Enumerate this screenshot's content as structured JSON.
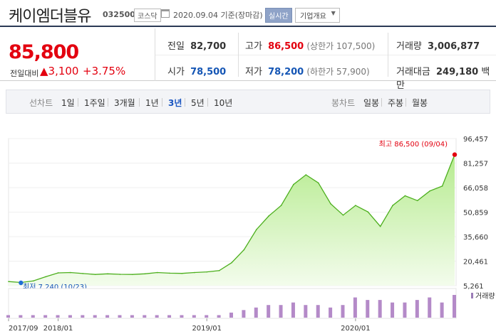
{
  "header": {
    "stock_name": "케이엠더블유",
    "stock_code": "032500",
    "market": "코스닥",
    "date_text": "2020.09.04 기준(장마감)",
    "realtime_label": "실시간",
    "company_info_label": "기업개요"
  },
  "quote": {
    "price": "85,800",
    "diff_label": "전일대비",
    "diff_value": "▲3,100",
    "diff_percent": "+3.75%",
    "prev_label": "전일",
    "prev_value": "82,700",
    "high_label": "고가",
    "high_value": "86,500",
    "upper_limit": "(상한가 107,500)",
    "volume_label": "거래량",
    "volume_value": "3,006,877",
    "open_label": "시가",
    "open_value": "78,500",
    "low_label": "저가",
    "low_value": "78,200",
    "lower_limit": "(하한가 57,900)",
    "amount_label": "거래대금",
    "amount_value": "249,180",
    "amount_unit": "백만"
  },
  "tabs": {
    "line_chart_label": "선차트",
    "periods": [
      "1일",
      "1주일",
      "3개월",
      "1년",
      "3년",
      "5년",
      "10년"
    ],
    "active_period": "3년",
    "candle_label": "봉차트",
    "candle_periods": [
      "일봉",
      "주봉",
      "월봉"
    ]
  },
  "colors": {
    "up": "#e3000f",
    "down": "#1556b5",
    "line": "#4caf1d",
    "area_top": "#bfeea0",
    "volume": "#b48ac8"
  },
  "chart_data": {
    "type": "area",
    "title": "",
    "x_ticks": [
      "2017/09",
      "2018/01",
      "2019/01",
      "2020/01"
    ],
    "y_ticks": [
      5261,
      20461,
      35660,
      50859,
      66058,
      81257,
      96457
    ],
    "y_tick_labels": [
      "5,261",
      "20,461",
      "35,660",
      "50,859",
      "66,058",
      "81,257",
      "96,457"
    ],
    "ylim": [
      5261,
      96457
    ],
    "high_annotation": "최고 86,500 (09/04)",
    "low_annotation": "최저 7,240 (10/23)",
    "volume_legend": "거래량",
    "price_series": [
      {
        "date": "2017-09",
        "value": 7800
      },
      {
        "date": "2017-10",
        "value": 7240
      },
      {
        "date": "2017-11",
        "value": 8200
      },
      {
        "date": "2017-12",
        "value": 10800
      },
      {
        "date": "2018-01",
        "value": 13200
      },
      {
        "date": "2018-02",
        "value": 13400
      },
      {
        "date": "2018-03",
        "value": 12800
      },
      {
        "date": "2018-04",
        "value": 12200
      },
      {
        "date": "2018-05",
        "value": 12600
      },
      {
        "date": "2018-06",
        "value": 12300
      },
      {
        "date": "2018-07",
        "value": 12200
      },
      {
        "date": "2018-08",
        "value": 12600
      },
      {
        "date": "2018-09",
        "value": 13400
      },
      {
        "date": "2018-10",
        "value": 13000
      },
      {
        "date": "2018-11",
        "value": 12900
      },
      {
        "date": "2018-12",
        "value": 13400
      },
      {
        "date": "2019-01",
        "value": 13800
      },
      {
        "date": "2019-02",
        "value": 14600
      },
      {
        "date": "2019-03",
        "value": 19500
      },
      {
        "date": "2019-04",
        "value": 27500
      },
      {
        "date": "2019-05",
        "value": 40000
      },
      {
        "date": "2019-06",
        "value": 48500
      },
      {
        "date": "2019-07",
        "value": 55000
      },
      {
        "date": "2019-08",
        "value": 68000
      },
      {
        "date": "2019-09",
        "value": 74000
      },
      {
        "date": "2019-10",
        "value": 69000
      },
      {
        "date": "2019-11",
        "value": 56000
      },
      {
        "date": "2019-12",
        "value": 49000
      },
      {
        "date": "2020-01",
        "value": 55000
      },
      {
        "date": "2020-02",
        "value": 51000
      },
      {
        "date": "2020-03",
        "value": 42000
      },
      {
        "date": "2020-04",
        "value": 55000
      },
      {
        "date": "2020-05",
        "value": 61000
      },
      {
        "date": "2020-06",
        "value": 58000
      },
      {
        "date": "2020-07",
        "value": 64000
      },
      {
        "date": "2020-08",
        "value": 67000
      },
      {
        "date": "2020-09",
        "value": 86500
      }
    ],
    "volume_series": [
      1,
      1,
      1,
      1,
      1,
      1,
      1,
      1,
      1,
      1,
      1,
      1,
      1,
      1,
      1,
      1,
      1,
      1,
      2,
      3,
      4,
      5,
      5,
      6,
      5,
      5,
      4,
      5,
      8,
      7,
      7,
      6,
      6,
      7,
      8,
      6,
      9
    ]
  }
}
